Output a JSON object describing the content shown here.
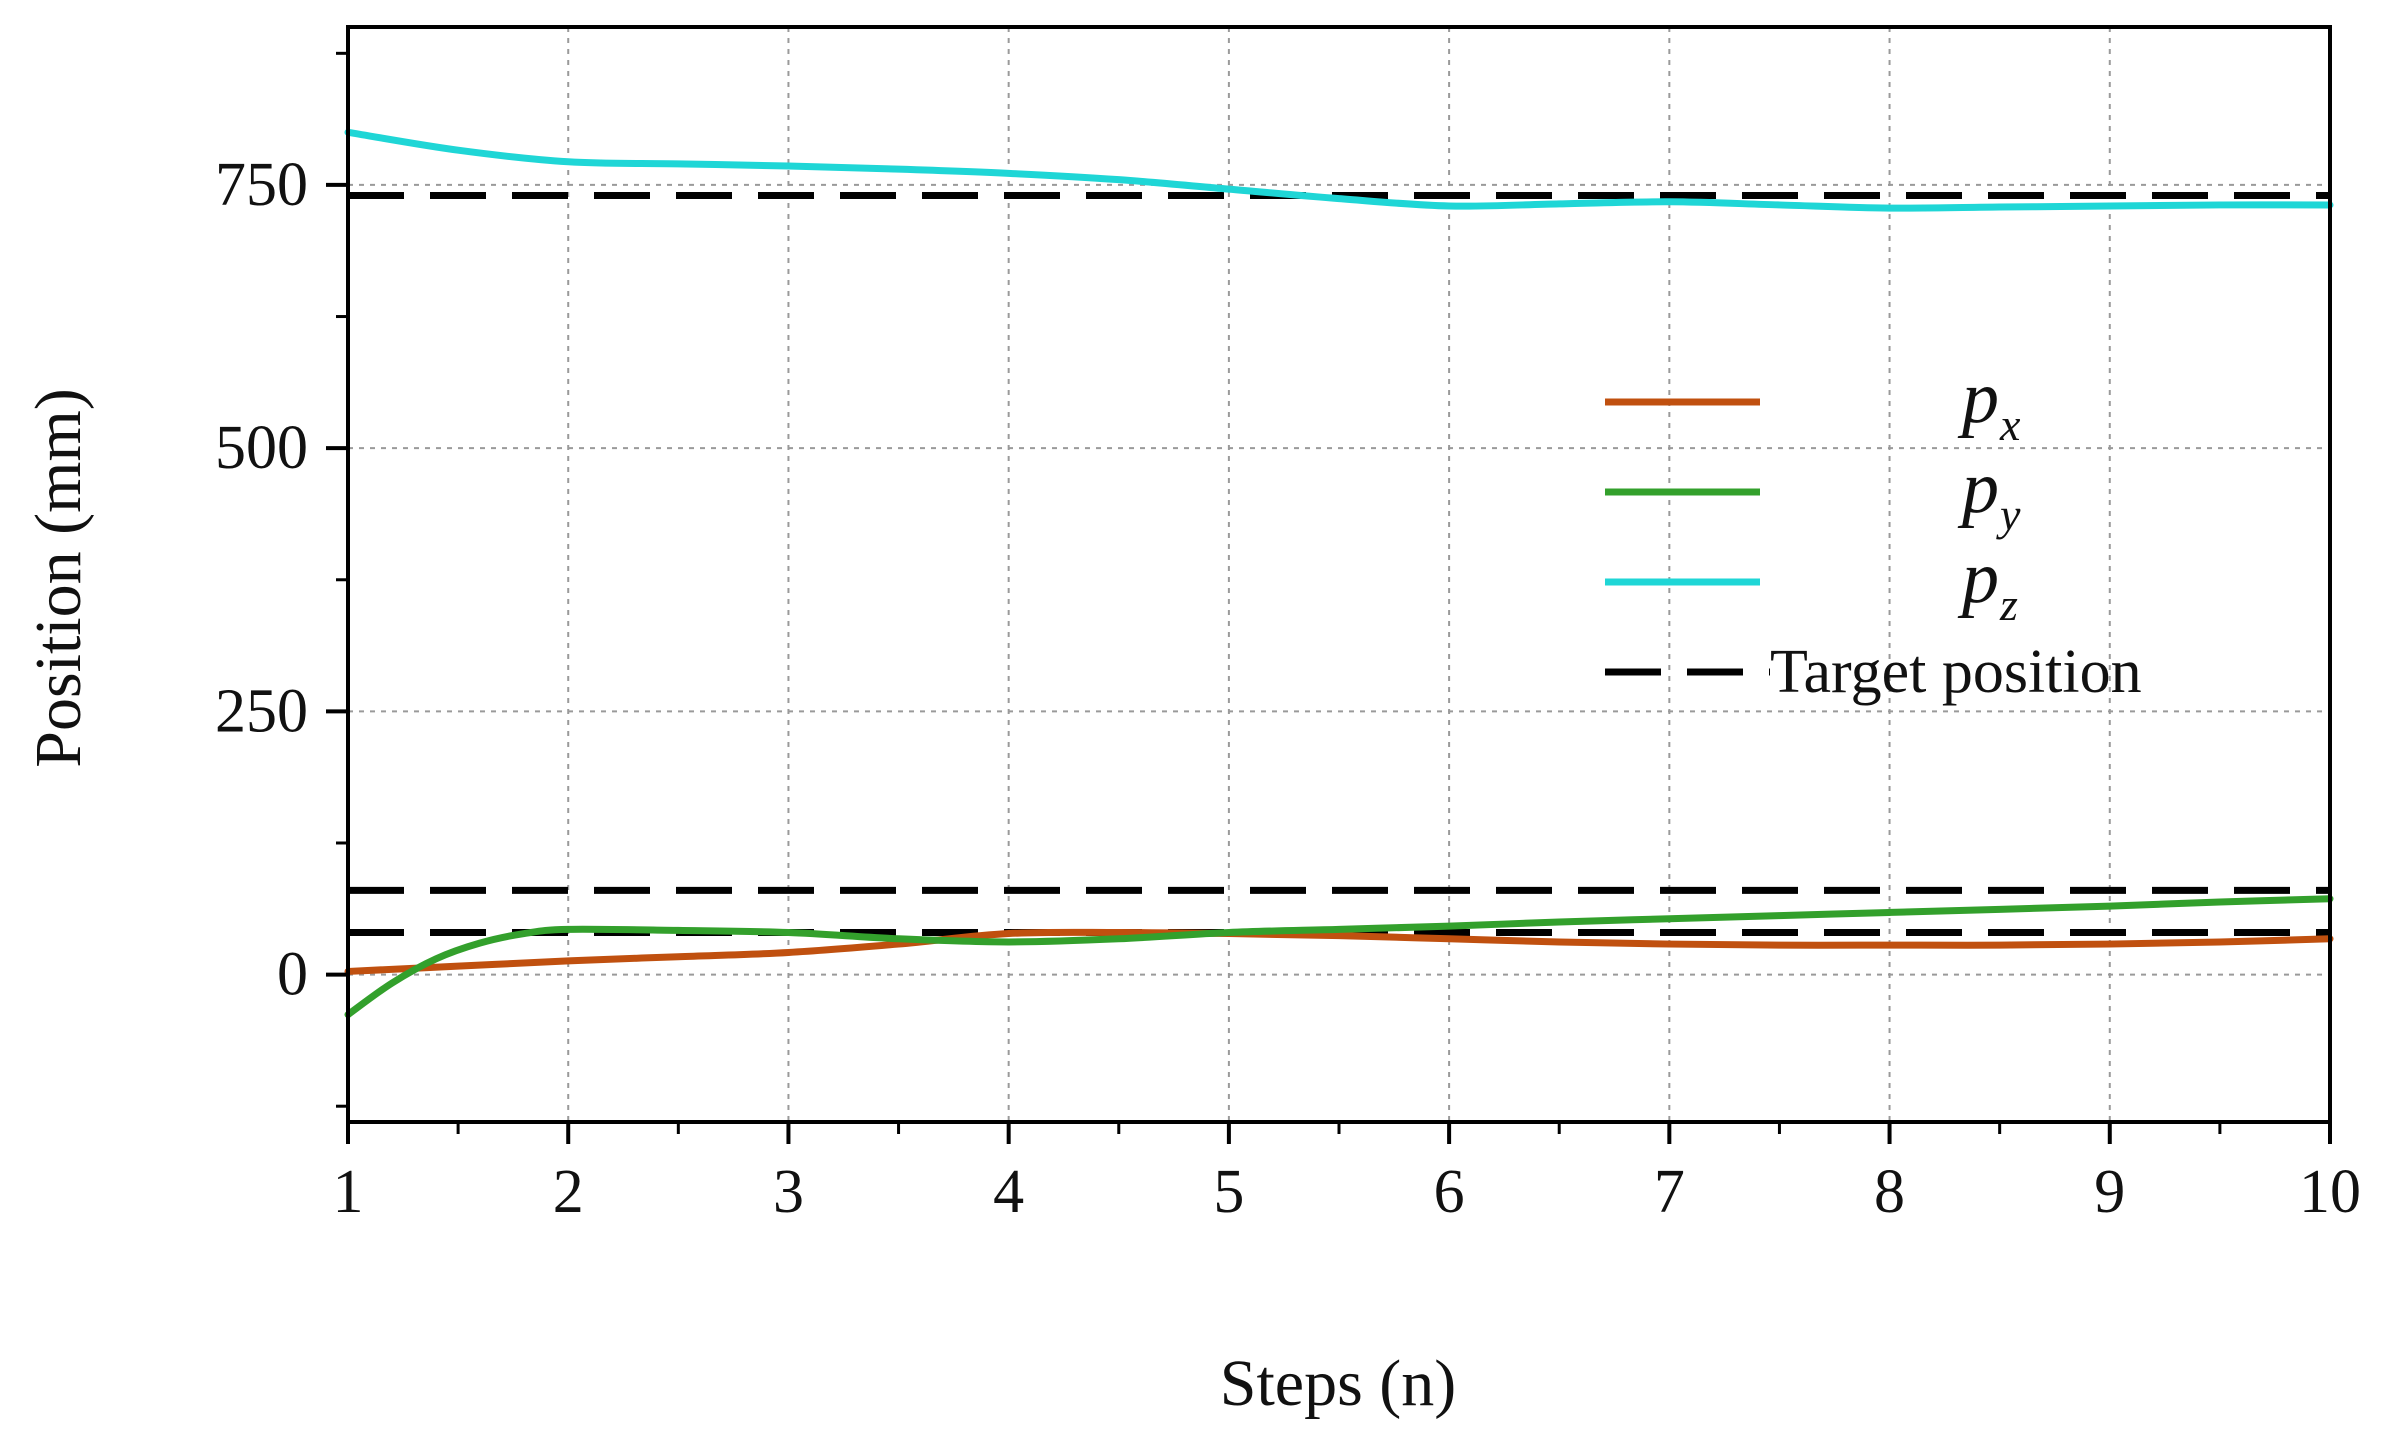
{
  "chart_data": {
    "type": "line",
    "xlabel": "Steps  (n)",
    "ylabel": "Position  (mm)",
    "xlim": [
      1,
      10
    ],
    "ylim": [
      -140,
      900
    ],
    "x_ticks": [
      1,
      2,
      3,
      4,
      5,
      6,
      7,
      8,
      9,
      10
    ],
    "y_ticks": [
      0,
      250,
      500,
      750
    ],
    "y_minor_ticks": [
      -125,
      125,
      375,
      625,
      875
    ],
    "grid": true,
    "legend_position": "right",
    "series": [
      {
        "name": "p",
        "subscript": "x",
        "color": "#c0500f",
        "x": [
          1,
          1.5,
          2,
          2.5,
          3,
          3.5,
          4,
          4.5,
          5,
          5.5,
          6,
          6.5,
          7,
          7.5,
          8,
          8.5,
          9,
          9.5,
          10
        ],
        "y": [
          3,
          8,
          13,
          17,
          21,
          29,
          39,
          40,
          39,
          37,
          34,
          31,
          29,
          28,
          28,
          28,
          29,
          31,
          34
        ]
      },
      {
        "name": "p",
        "subscript": "y",
        "color": "#33a02c",
        "x": [
          1,
          1.2,
          1.4,
          1.6,
          1.8,
          2,
          2.5,
          3,
          3.5,
          4,
          4.5,
          5,
          5.5,
          6,
          6.5,
          7,
          7.5,
          8,
          8.5,
          9,
          9.5,
          10
        ],
        "y": [
          -38,
          -8,
          15,
          30,
          39,
          43,
          42,
          40,
          34,
          31,
          34,
          40,
          43,
          46,
          50,
          53,
          56,
          59,
          62,
          65,
          69,
          72
        ]
      },
      {
        "name": "p",
        "subscript": "z",
        "color": "#1fd6d6",
        "x": [
          1,
          1.5,
          2,
          2.5,
          3,
          3.5,
          4,
          4.5,
          5,
          5.5,
          6,
          6.5,
          7,
          7.5,
          8,
          8.5,
          9,
          9.5,
          10
        ],
        "y": [
          800,
          783,
          772,
          770,
          768,
          765,
          761,
          755,
          746,
          737,
          730,
          732,
          734,
          731,
          728,
          729,
          730,
          731,
          731
        ]
      },
      {
        "name": "Target position",
        "color": "#000000",
        "dashed": true,
        "levels": [
          740,
          80,
          40
        ]
      }
    ]
  }
}
